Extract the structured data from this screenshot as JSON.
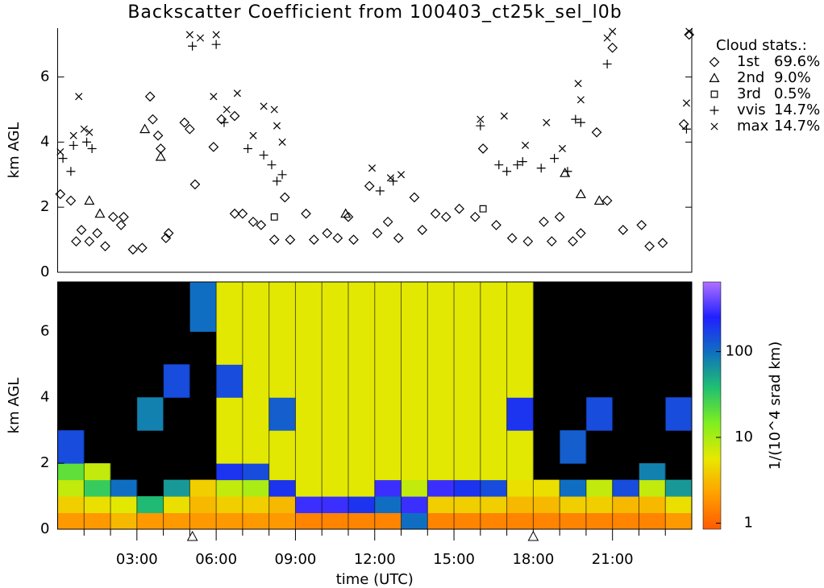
{
  "chart_data": [
    {
      "type": "scatter",
      "title": "Backscatter Coefficient from 100403_ct25k_sel_l0b",
      "ylabel": "km AGL",
      "xlim": [
        0,
        24
      ],
      "ylim": [
        0,
        7.5
      ],
      "yticks": [
        0,
        2,
        4,
        6
      ],
      "legend_title": "Cloud stats.:",
      "legend": "upper right",
      "series": [
        {
          "name": "1st",
          "symbol": "diamond",
          "color": "#000000",
          "share": 69.6,
          "share_label": "69.6%",
          "x": [
            0.1,
            0.5,
            0.7,
            0.9,
            1.2,
            1.5,
            1.8,
            2.1,
            2.4,
            2.5,
            2.85,
            3.2,
            3.5,
            3.6,
            3.8,
            3.9,
            4.1,
            4.2,
            4.8,
            5.0,
            5.2,
            5.9,
            6.2,
            6.7,
            6.7,
            7.0,
            7.4,
            7.7,
            8.2,
            8.6,
            8.8,
            9.4,
            9.7,
            10.2,
            10.6,
            11.0,
            11.2,
            11.8,
            12.1,
            12.5,
            12.9,
            13.5,
            13.8,
            14.3,
            14.7,
            15.2,
            15.8,
            16.1,
            16.6,
            17.2,
            17.8,
            18.4,
            18.7,
            19.0,
            19.5,
            19.8,
            20.4,
            20.8,
            21.0,
            21.4,
            22.1,
            22.4,
            22.9,
            23.7,
            23.9
          ],
          "values": [
            2.4,
            2.2,
            0.95,
            1.3,
            0.95,
            1.2,
            0.8,
            1.7,
            1.45,
            1.7,
            0.7,
            0.75,
            5.4,
            4.7,
            4.2,
            3.8,
            1.05,
            1.2,
            4.6,
            4.4,
            2.7,
            3.85,
            4.7,
            4.8,
            1.8,
            1.8,
            1.55,
            1.45,
            1.0,
            2.3,
            1.0,
            1.8,
            1.0,
            1.2,
            1.05,
            1.7,
            1.0,
            2.65,
            1.2,
            1.55,
            1.05,
            2.3,
            1.3,
            1.8,
            1.7,
            1.95,
            1.7,
            3.8,
            1.45,
            1.05,
            0.95,
            1.55,
            0.95,
            1.7,
            0.95,
            1.2,
            4.3,
            2.2,
            6.9,
            1.3,
            1.45,
            0.8,
            0.9,
            4.55,
            7.3
          ]
        },
        {
          "name": "2nd",
          "symbol": "triangle",
          "color": "#000000",
          "share": 9.0,
          "share_label": "9.0%",
          "x": [
            1.2,
            1.6,
            3.3,
            3.9,
            10.9,
            19.2,
            19.8,
            20.5
          ],
          "values": [
            2.2,
            1.8,
            4.4,
            3.55,
            1.8,
            3.05,
            2.4,
            2.2
          ]
        },
        {
          "name": "3rd",
          "symbol": "square",
          "color": "#000000",
          "share": 0.5,
          "share_label": "0.5%",
          "x": [
            8.2,
            16.1
          ],
          "values": [
            1.7,
            1.95
          ]
        },
        {
          "name": "vvis",
          "symbol": "plus",
          "color": "#000000",
          "share": 14.7,
          "share_label": "14.7%",
          "x": [
            0.2,
            0.5,
            0.6,
            1.1,
            1.3,
            5.1,
            6.0,
            6.3,
            7.2,
            7.8,
            8.1,
            8.3,
            8.5,
            12.2,
            12.7,
            16.0,
            16.7,
            17.0,
            17.4,
            17.6,
            18.3,
            18.8,
            19.3,
            19.6,
            19.8,
            20.8,
            23.8
          ],
          "values": [
            3.5,
            3.1,
            3.9,
            4.0,
            3.8,
            6.95,
            7.0,
            4.6,
            3.8,
            3.6,
            3.3,
            2.8,
            3.0,
            2.5,
            2.8,
            4.5,
            3.3,
            3.1,
            3.3,
            3.4,
            3.2,
            3.5,
            3.1,
            4.7,
            4.6,
            6.4,
            4.4
          ]
        },
        {
          "name": "max",
          "symbol": "cross",
          "color": "#000000",
          "share": 14.7,
          "share_label": "14.7%",
          "x": [
            0.1,
            0.6,
            0.8,
            1.0,
            1.2,
            5.0,
            5.4,
            6.0,
            5.9,
            6.4,
            6.8,
            7.4,
            7.8,
            8.2,
            8.3,
            8.5,
            11.9,
            12.6,
            13.0,
            16.0,
            16.9,
            17.7,
            18.5,
            19.1,
            19.7,
            19.8,
            20.8,
            21.0,
            23.9,
            23.8
          ],
          "values": [
            3.7,
            4.2,
            5.4,
            4.4,
            4.3,
            7.3,
            7.2,
            7.3,
            5.4,
            5.0,
            5.5,
            4.2,
            5.1,
            5.0,
            4.5,
            4.0,
            3.2,
            2.9,
            3.0,
            4.7,
            4.8,
            3.9,
            4.6,
            3.8,
            5.8,
            5.3,
            7.2,
            7.4,
            7.4,
            5.2
          ]
        }
      ]
    },
    {
      "type": "heatmap",
      "ylabel": "km AGL",
      "xlabel": "time (UTC)",
      "xlim": [
        0,
        24
      ],
      "ylim": [
        0,
        7.5
      ],
      "yticks": [
        0,
        2,
        4,
        6
      ],
      "xticks": [
        {
          "value": 3,
          "label": "03:00"
        },
        {
          "value": 6,
          "label": "06:00"
        },
        {
          "value": 9,
          "label": "09:00"
        },
        {
          "value": 12,
          "label": "12:00"
        },
        {
          "value": 15,
          "label": "15:00"
        },
        {
          "value": 18,
          "label": "18:00"
        },
        {
          "value": 21,
          "label": "21:00"
        }
      ],
      "xminorticks": [
        1,
        2,
        4,
        5,
        7,
        8,
        10,
        11,
        13,
        14,
        16,
        17,
        19,
        20,
        22,
        23
      ],
      "markers": [
        5.1,
        18
      ],
      "x_bins": [
        0,
        1,
        2,
        3,
        4,
        5,
        6,
        7,
        8,
        9,
        10,
        11,
        12,
        13,
        14,
        15,
        16,
        17,
        18,
        19,
        20,
        21,
        22,
        23,
        24
      ],
      "y_bins": [
        0,
        0.5,
        1,
        1.5,
        2,
        3,
        4,
        5,
        6,
        7.5
      ],
      "z": [
        [
          2,
          4,
          8,
          20,
          150,
          null,
          null,
          null,
          null
        ],
        [
          2,
          5,
          30,
          8,
          null,
          null,
          null,
          null,
          null
        ],
        [
          3,
          6,
          100,
          null,
          null,
          null,
          null,
          null,
          null
        ],
        [
          2,
          40,
          null,
          null,
          null,
          80,
          null,
          null,
          null
        ],
        [
          2,
          5,
          60,
          null,
          null,
          null,
          150,
          null,
          null
        ],
        [
          2,
          3,
          4,
          null,
          null,
          null,
          null,
          null,
          100
        ],
        [
          2,
          4,
          8,
          200,
          6,
          6,
          150,
          6,
          6
        ],
        [
          2,
          4,
          10,
          150,
          6,
          6,
          6,
          6,
          6
        ],
        [
          2,
          3,
          200,
          6,
          6,
          120,
          6,
          6,
          6
        ],
        [
          1.5,
          300,
          6,
          6,
          6,
          6,
          6,
          6,
          6
        ],
        [
          1.5,
          300,
          6,
          6,
          6,
          6,
          6,
          6,
          6
        ],
        [
          1.5,
          200,
          6,
          6,
          6,
          6,
          6,
          6,
          6
        ],
        [
          1.5,
          100,
          300,
          6,
          6,
          6,
          6,
          6,
          6
        ],
        [
          100,
          300,
          8,
          6,
          6,
          6,
          6,
          6,
          6
        ],
        [
          1.5,
          4,
          300,
          6,
          6,
          6,
          6,
          6,
          6
        ],
        [
          1.5,
          4,
          200,
          6,
          6,
          6,
          6,
          6,
          6
        ],
        [
          1.5,
          4,
          150,
          6,
          6,
          6,
          6,
          6,
          6
        ],
        [
          1.5,
          3,
          5,
          6,
          6,
          200,
          6,
          6,
          6
        ],
        [
          1.5,
          3,
          5,
          null,
          null,
          null,
          null,
          null,
          null
        ],
        [
          1.5,
          4,
          100,
          null,
          120,
          null,
          null,
          null,
          null
        ],
        [
          1.5,
          4,
          8,
          null,
          null,
          150,
          null,
          null,
          null
        ],
        [
          1.5,
          3,
          150,
          null,
          null,
          null,
          null,
          null,
          null
        ],
        [
          1.5,
          3,
          8,
          80,
          null,
          null,
          null,
          null,
          null
        ],
        [
          2,
          5,
          60,
          null,
          null,
          150,
          null,
          null,
          null
        ]
      ],
      "missing_color": "#000000",
      "colormap": [
        "#ff5a00",
        "#ffa000",
        "#e8e800",
        "#80ee20",
        "#20c070",
        "#1070c0",
        "#2020ff",
        "#b070ff"
      ],
      "clim": [
        0.85,
        650
      ],
      "colorbar_log": true,
      "colorbar_ticks": [
        1,
        10,
        100
      ],
      "colorbar_label": "1/(10^4 srad km)"
    }
  ]
}
